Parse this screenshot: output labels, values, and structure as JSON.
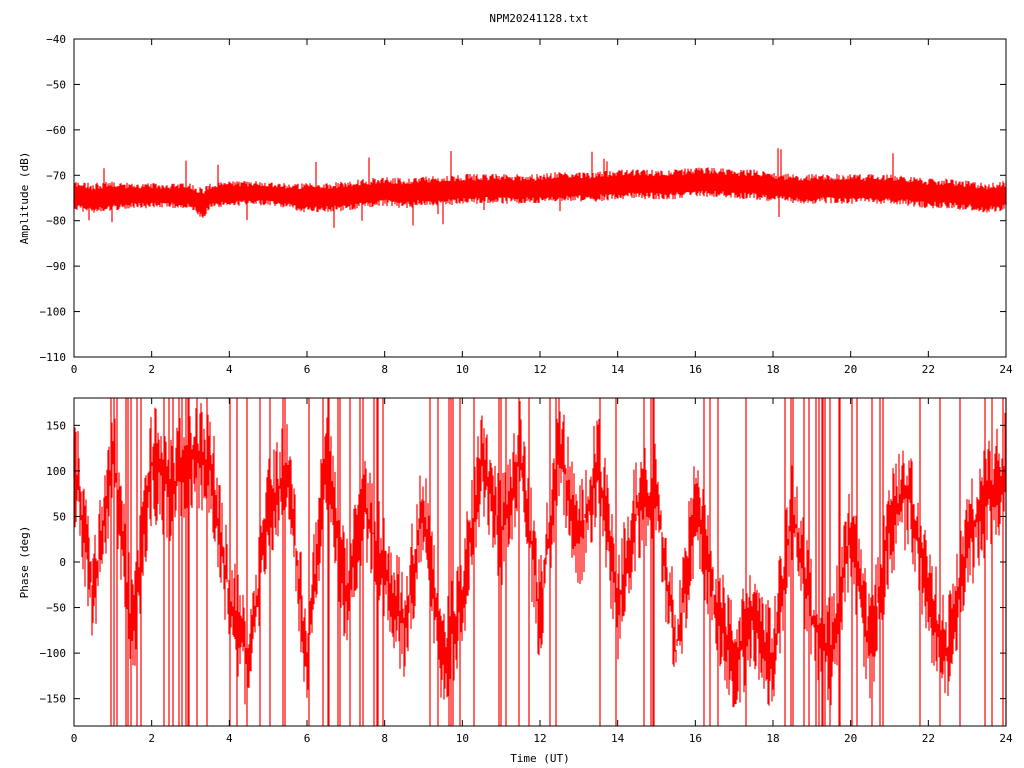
{
  "title": "NPM20241128.txt",
  "chart_data": [
    {
      "type": "line",
      "title": "NPM20241128.txt",
      "xlabel": "",
      "ylabel": "Amplitude (dB)",
      "xlim": [
        0,
        24
      ],
      "ylim": [
        -110,
        -40
      ],
      "xticks": [
        0,
        2,
        4,
        6,
        8,
        10,
        12,
        14,
        16,
        18,
        20,
        22,
        24
      ],
      "yticks": [
        -40,
        -50,
        -60,
        -70,
        -80,
        -90,
        -100,
        -110
      ],
      "grid": false,
      "color": "#ff0000",
      "series": [
        {
          "x": [
            0,
            0.5,
            1,
            1.5,
            2,
            2.5,
            3,
            3.3,
            3.5,
            4,
            4.5,
            5,
            5.5,
            6,
            6.5,
            7,
            7.5,
            8,
            8.5,
            9,
            9.5,
            10,
            10.5,
            11,
            11.5,
            12,
            12.5,
            13,
            13.5,
            14,
            14.5,
            15,
            15.5,
            16,
            16.5,
            17,
            17.5,
            18,
            18.5,
            19,
            19.5,
            20,
            20.5,
            21,
            21.5,
            22,
            22.5,
            23,
            23.5,
            24
          ],
          "center": [
            -74.5,
            -75,
            -74.5,
            -74.5,
            -74.5,
            -74.5,
            -74.5,
            -76.5,
            -74.5,
            -74,
            -74,
            -74,
            -74.5,
            -75,
            -75,
            -74.5,
            -74,
            -73.5,
            -74,
            -73.5,
            -73.5,
            -73,
            -73,
            -73,
            -73,
            -73,
            -72.5,
            -72.5,
            -72.5,
            -72,
            -72,
            -72,
            -72,
            -71.5,
            -71.5,
            -72,
            -72,
            -72.5,
            -73,
            -73,
            -73,
            -73,
            -73,
            -73,
            -73.5,
            -74,
            -74,
            -74.5,
            -75,
            -74.5
          ],
          "half_range": [
            3,
            3,
            3,
            2.5,
            2.5,
            2.5,
            2.5,
            3.5,
            2.5,
            2.5,
            2.5,
            2.5,
            2.5,
            3,
            3,
            3,
            3,
            3,
            3,
            3,
            3,
            3,
            3,
            3,
            3,
            3,
            3,
            3,
            3,
            3,
            3,
            3,
            3,
            3,
            3,
            3,
            3,
            3,
            3,
            3,
            3,
            3,
            3,
            3,
            3,
            3,
            3,
            3,
            3,
            3
          ]
        }
      ]
    },
    {
      "type": "line",
      "xlabel": "Time (UT)",
      "ylabel": "Phase (deg)",
      "xlim": [
        0,
        24
      ],
      "ylim": [
        -180,
        180
      ],
      "xticks": [
        0,
        2,
        4,
        6,
        8,
        10,
        12,
        14,
        16,
        18,
        20,
        22,
        24
      ],
      "yticks": [
        150,
        100,
        50,
        0,
        -50,
        -100,
        -150
      ],
      "grid": false,
      "color": "#ff0000",
      "series": [
        {
          "x": [
            0,
            0.5,
            1,
            1.5,
            2,
            2.5,
            3,
            3.5,
            4,
            4.5,
            5,
            5.5,
            6,
            6.5,
            7,
            7.5,
            8,
            8.5,
            9,
            9.5,
            10,
            10.5,
            11,
            11.5,
            12,
            12.5,
            13,
            13.5,
            14,
            14.5,
            15,
            15.5,
            16,
            16.5,
            17,
            17.5,
            18,
            18.5,
            19,
            19.5,
            20,
            20.5,
            21,
            21.5,
            22,
            22.5,
            23,
            23.5,
            24
          ],
          "center": [
            110,
            -40,
            120,
            -80,
            110,
            80,
            120,
            110,
            -40,
            -110,
            60,
            100,
            -110,
            120,
            -40,
            60,
            -10,
            -70,
            60,
            -110,
            -40,
            120,
            30,
            120,
            -60,
            130,
            20,
            110,
            -50,
            60,
            80,
            -100,
            60,
            -40,
            -110,
            -60,
            -110,
            60,
            -60,
            -100,
            30,
            -100,
            40,
            80,
            -40,
            -100,
            20,
            70,
            100
          ],
          "half_range": [
            70,
            60,
            60,
            60,
            70,
            60,
            60,
            60,
            60,
            60,
            60,
            60,
            60,
            60,
            60,
            60,
            60,
            60,
            60,
            60,
            60,
            60,
            60,
            60,
            60,
            60,
            60,
            60,
            60,
            60,
            60,
            60,
            60,
            60,
            60,
            60,
            60,
            60,
            60,
            60,
            60,
            60,
            60,
            60,
            60,
            60,
            60,
            60,
            70
          ]
        }
      ]
    }
  ]
}
